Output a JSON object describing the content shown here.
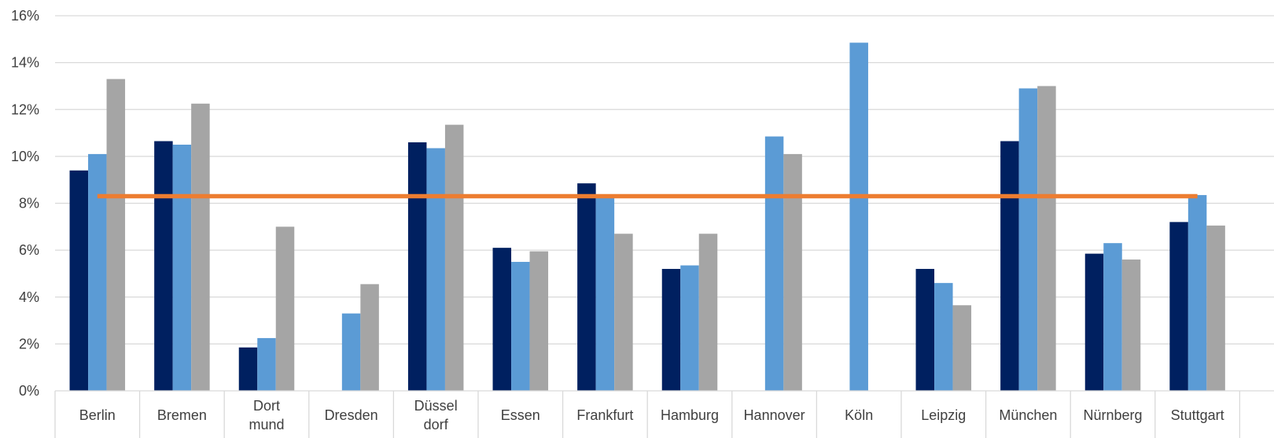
{
  "chart_data": {
    "type": "bar",
    "categories": [
      [
        "Berlin"
      ],
      [
        "Bremen"
      ],
      [
        "Dort",
        "mund"
      ],
      [
        "Dresden"
      ],
      [
        "Düssel",
        "dorf"
      ],
      [
        "Essen"
      ],
      [
        "Frankfurt"
      ],
      [
        "Hamburg"
      ],
      [
        "Hannover"
      ],
      [
        "Köln"
      ],
      [
        "Leipzig"
      ],
      [
        "München"
      ],
      [
        "Nürnberg"
      ],
      [
        "Stuttgart"
      ]
    ],
    "series": [
      {
        "color": "#002060",
        "values": [
          9.4,
          10.65,
          1.85,
          null,
          10.6,
          6.1,
          8.85,
          5.2,
          null,
          null,
          5.2,
          10.65,
          5.85,
          7.2
        ]
      },
      {
        "color": "#5b9bd5",
        "values": [
          10.1,
          10.5,
          2.25,
          3.3,
          10.35,
          5.5,
          8.35,
          5.35,
          10.85,
          14.85,
          4.6,
          12.9,
          6.3,
          8.35
        ]
      },
      {
        "color": "#a5a5a5",
        "values": [
          13.3,
          12.25,
          7.0,
          4.55,
          11.35,
          5.95,
          6.7,
          6.7,
          10.1,
          null,
          3.65,
          13.0,
          5.6,
          7.05
        ]
      }
    ],
    "reference_line": {
      "value": 8.3,
      "color": "#ed7d31"
    },
    "yticks": [
      "0%",
      "2%",
      "4%",
      "6%",
      "8%",
      "10%",
      "12%",
      "14%",
      "16%"
    ],
    "ylim": [
      0,
      16
    ],
    "grid": true
  }
}
